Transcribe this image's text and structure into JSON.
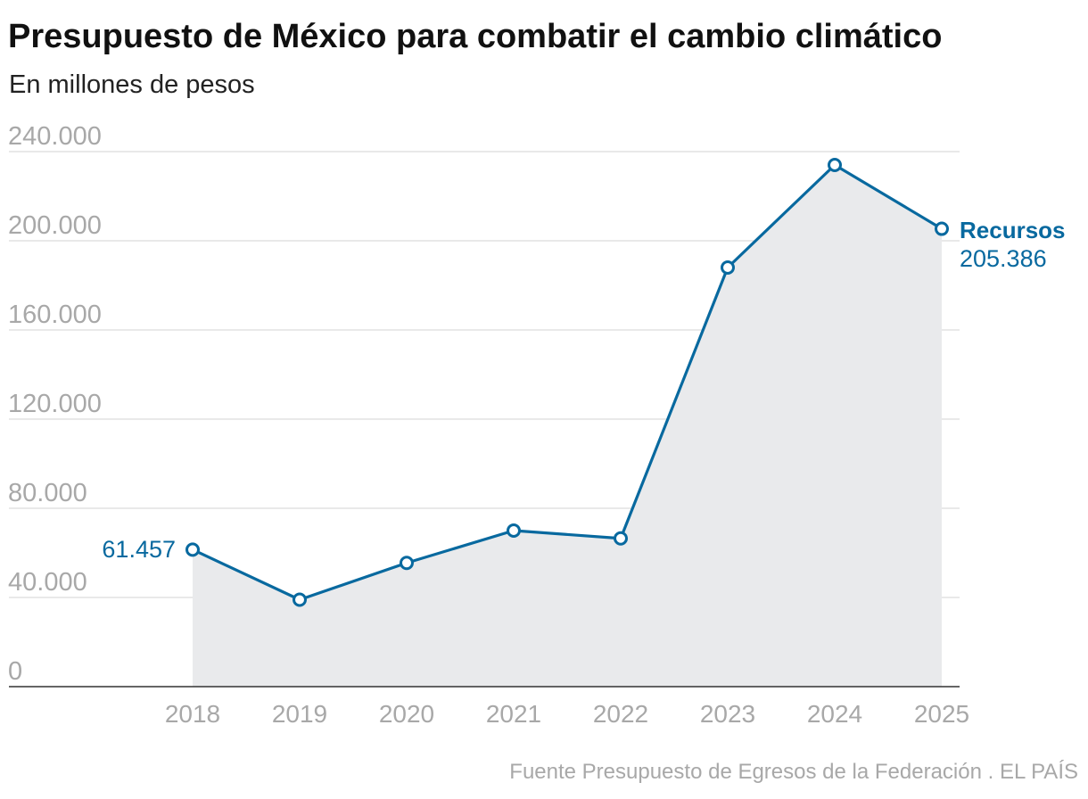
{
  "colors": {
    "series": "#08699f",
    "area": "#e9eaec",
    "grid": "#dcdcdc",
    "tick": "#a8a8a8"
  },
  "chart_data": {
    "type": "line",
    "title": "Presupuesto de México para combatir el cambio climático",
    "subtitle": "En millones de pesos",
    "xlabel": "",
    "ylabel": "",
    "ylim": [
      0,
      240000
    ],
    "grid": true,
    "y_ticks": [
      0,
      40000,
      80000,
      120000,
      160000,
      200000,
      240000
    ],
    "y_tick_labels": [
      "0",
      "40.000",
      "80.000",
      "120.000",
      "160.000",
      "200.000",
      "240.000"
    ],
    "categories": [
      "2018",
      "2019",
      "2020",
      "2021",
      "2022",
      "2023",
      "2024",
      "2025"
    ],
    "series": [
      {
        "name": "Recursos",
        "values": [
          61457,
          39000,
          55500,
          70000,
          66500,
          188000,
          234000,
          205386
        ]
      }
    ],
    "annotations": {
      "first_value_label": "61.457",
      "series_label": "Recursos",
      "last_value_label": "205.386"
    },
    "source": "Fuente Presupuesto de Egresos de la Federación . EL PAÍS"
  }
}
